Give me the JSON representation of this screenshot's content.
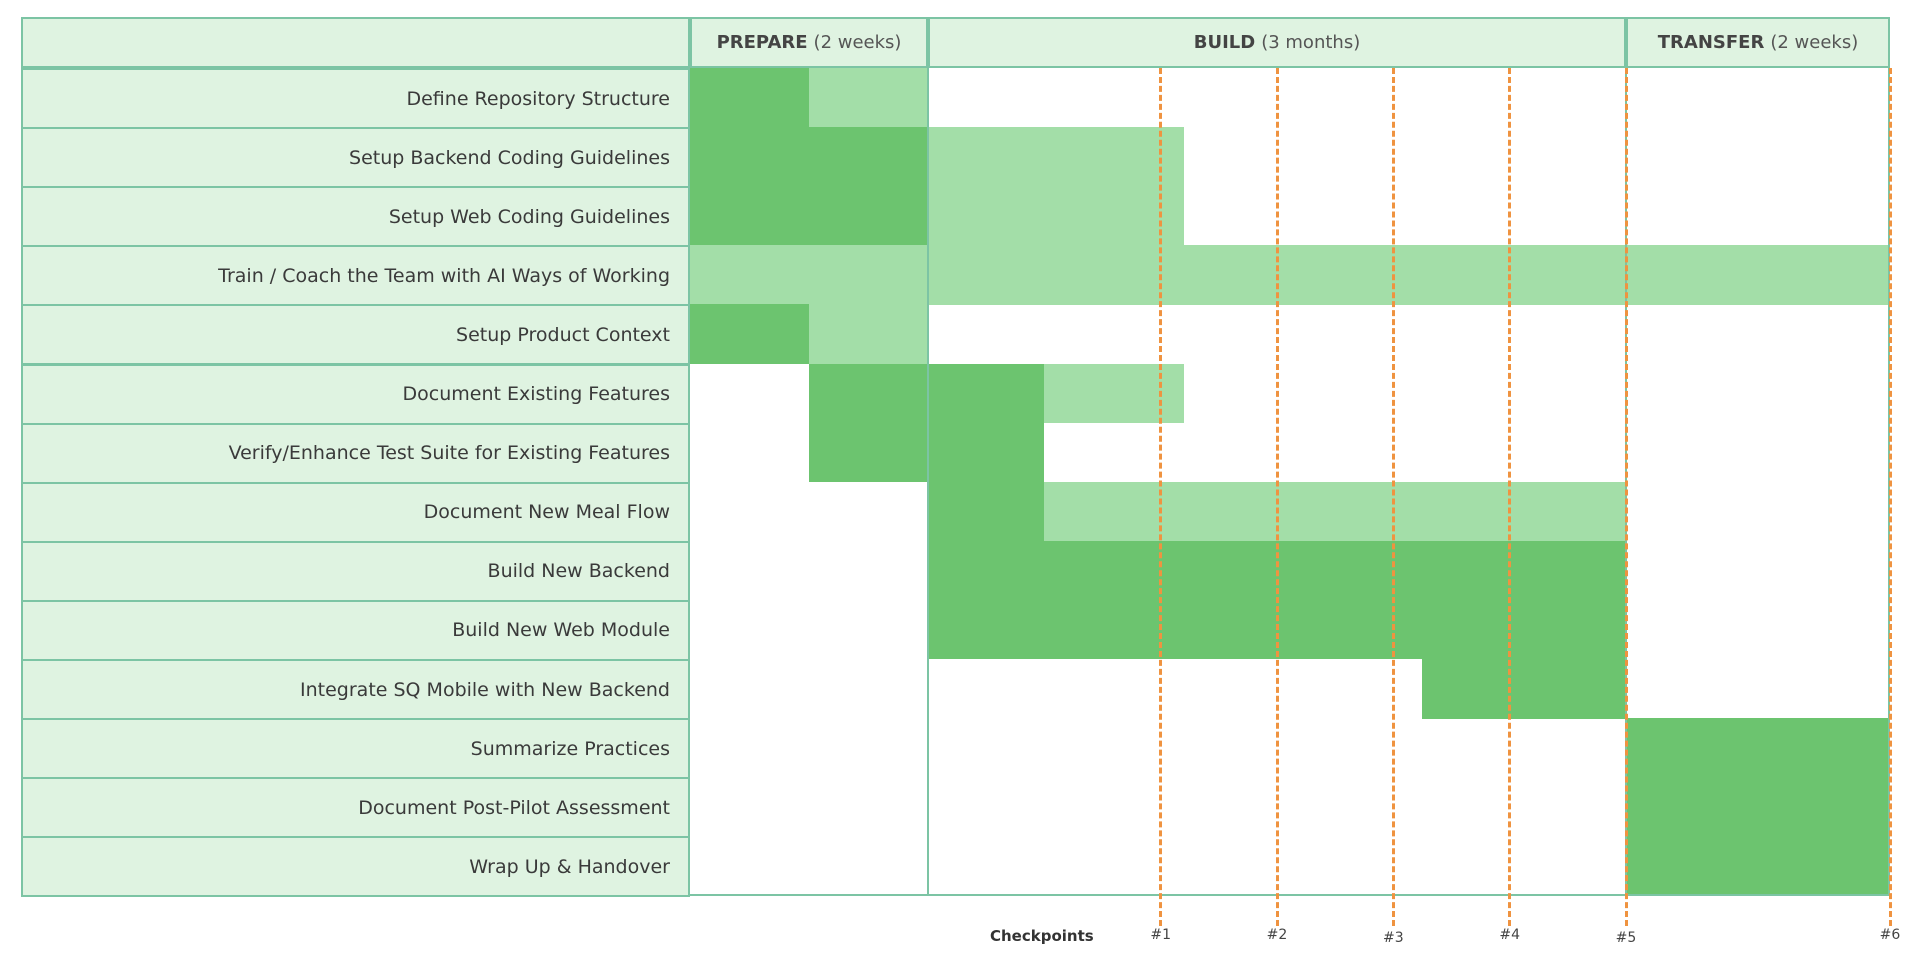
{
  "chart_data": {
    "type": "gantt",
    "time_unit": "weeks",
    "phases": [
      {
        "name": "PREPARE",
        "duration_label": "(2 weeks)",
        "start": 0,
        "end": 2
      },
      {
        "name": "BUILD",
        "duration_label": "(3 months)",
        "start": 2,
        "end": 14
      },
      {
        "name": "TRANSFER",
        "duration_label": "(2 weeks)",
        "start": 14,
        "end": 16
      }
    ],
    "tasks": [
      {
        "name": "Define Repository Structure",
        "segments": [
          {
            "start": 0,
            "end": 1,
            "shade": "dark"
          },
          {
            "start": 1,
            "end": 2,
            "shade": "light"
          }
        ]
      },
      {
        "name": "Setup Backend Coding Guidelines",
        "segments": [
          {
            "start": 0,
            "end": 2,
            "shade": "dark"
          },
          {
            "start": 2,
            "end": 6.4,
            "shade": "light"
          }
        ]
      },
      {
        "name": "Setup Web Coding Guidelines",
        "segments": [
          {
            "start": 0,
            "end": 2,
            "shade": "dark"
          },
          {
            "start": 2,
            "end": 6.4,
            "shade": "light"
          }
        ]
      },
      {
        "name": "Train / Coach the Team with AI Ways of Working",
        "segments": [
          {
            "start": 0,
            "end": 16,
            "shade": "light"
          }
        ]
      },
      {
        "name": "Setup Product Context",
        "segments": [
          {
            "start": 0,
            "end": 1,
            "shade": "dark"
          },
          {
            "start": 1,
            "end": 2,
            "shade": "light"
          }
        ]
      },
      {
        "name": "Document Existing Features",
        "segments": [
          {
            "start": 1,
            "end": 4,
            "shade": "dark"
          },
          {
            "start": 4,
            "end": 6.4,
            "shade": "light"
          }
        ]
      },
      {
        "name": "Verify/Enhance Test Suite for Existing Features",
        "segments": [
          {
            "start": 1,
            "end": 4,
            "shade": "dark"
          }
        ]
      },
      {
        "name": "Document New Meal Flow",
        "segments": [
          {
            "start": 2,
            "end": 4,
            "shade": "dark"
          },
          {
            "start": 4,
            "end": 14,
            "shade": "light"
          }
        ]
      },
      {
        "name": "Build New Backend",
        "segments": [
          {
            "start": 2,
            "end": 14,
            "shade": "dark"
          }
        ]
      },
      {
        "name": "Build New Web Module",
        "segments": [
          {
            "start": 2,
            "end": 14,
            "shade": "dark"
          }
        ]
      },
      {
        "name": "Integrate SQ Mobile with New Backend",
        "segments": [
          {
            "start": 10.5,
            "end": 14,
            "shade": "dark"
          }
        ]
      },
      {
        "name": "Summarize Practices",
        "segments": [
          {
            "start": 14,
            "end": 16,
            "shade": "dark"
          }
        ]
      },
      {
        "name": "Document Post-Pilot Assessment",
        "segments": [
          {
            "start": 14,
            "end": 16,
            "shade": "dark"
          }
        ]
      },
      {
        "name": "Wrap Up & Handover",
        "segments": [
          {
            "start": 14,
            "end": 16,
            "shade": "dark"
          }
        ]
      }
    ],
    "checkpoints_title": "Checkpoints",
    "checkpoints": [
      {
        "label": "#1",
        "at": 6
      },
      {
        "label": "#2",
        "at": 8
      },
      {
        "label": "#3",
        "at": 10
      },
      {
        "label": "#4",
        "at": 12
      },
      {
        "label": "#5",
        "at": 14
      },
      {
        "label": "#6",
        "at": 16
      }
    ],
    "colors": {
      "dark": "#6cc46f",
      "light": "#a3dea8",
      "label_bg": "#dff3e1",
      "border": "#7cc4a4",
      "checkpoint": "#ef9340"
    }
  }
}
